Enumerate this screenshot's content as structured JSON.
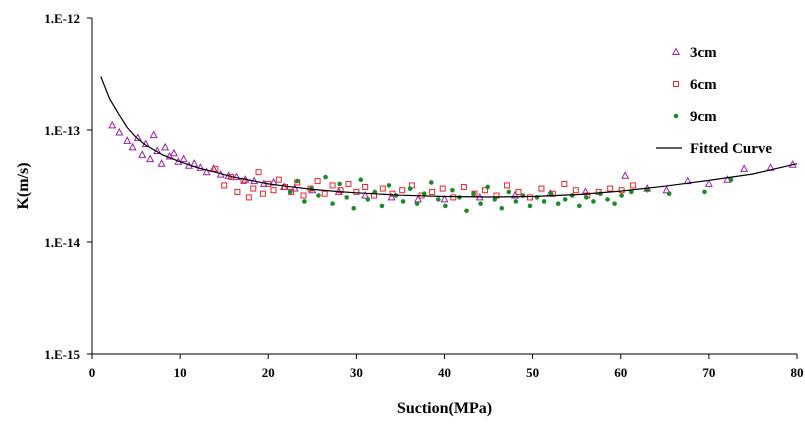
{
  "chart_data": {
    "type": "scatter",
    "title": "",
    "xlabel": "Suction(MPa)",
    "ylabel": "K(m/s)",
    "xlim": [
      0,
      80
    ],
    "ylim": [
      1e-15,
      1e-12
    ],
    "y_scale": "log",
    "grid": false,
    "legend_position": "top-right",
    "x_ticks": [
      "0",
      "10",
      "20",
      "30",
      "40",
      "50",
      "60",
      "70",
      "80"
    ],
    "y_ticks": [
      "1.E-15",
      "1.E-14",
      "1.E-13",
      "1.E-12"
    ],
    "series": [
      {
        "name": "3cm",
        "marker": "triangle-open",
        "color": "#9b1fa6",
        "x": [
          2.3,
          3.1,
          4.0,
          4.6,
          5.2,
          5.7,
          6.1,
          6.6,
          7.0,
          7.4,
          7.9,
          8.3,
          8.8,
          9.3,
          9.8,
          10.4,
          11.0,
          11.6,
          12.3,
          13.0,
          13.8,
          14.6,
          15.5,
          16.4,
          17.4,
          18.4,
          19.5,
          20.6,
          21.8,
          23.0,
          25.0,
          28.0,
          31.0,
          34.0,
          37.0,
          40.0,
          44.0,
          48.0,
          52.0,
          56.0,
          60.5,
          63.0,
          65.2,
          67.6,
          70.0,
          72.1,
          74.0,
          77.0,
          79.5
        ],
        "y": [
          1.1e-13,
          9.5e-14,
          8e-14,
          7e-14,
          8.5e-14,
          6e-14,
          7.5e-14,
          5.5e-14,
          9e-14,
          6.5e-14,
          5e-14,
          7e-14,
          5.8e-14,
          6.2e-14,
          5.2e-14,
          5.5e-14,
          4.8e-14,
          5e-14,
          4.6e-14,
          4.2e-14,
          4.5e-14,
          4e-14,
          3.9e-14,
          3.8e-14,
          3.6e-14,
          3.5e-14,
          3.3e-14,
          3.4e-14,
          3.1e-14,
          3e-14,
          2.9e-14,
          2.8e-14,
          2.6e-14,
          2.5e-14,
          2.4e-14,
          2.4e-14,
          2.5e-14,
          2.6e-14,
          2.7e-14,
          2.8e-14,
          3.9e-14,
          3e-14,
          2.9e-14,
          3.5e-14,
          3.3e-14,
          3.6e-14,
          4.5e-14,
          4.6e-14,
          4.9e-14
        ]
      },
      {
        "name": "6cm",
        "marker": "square-open",
        "color": "#e8242a",
        "x": [
          14.0,
          15.0,
          15.8,
          16.5,
          17.2,
          17.8,
          18.3,
          18.9,
          19.4,
          20.0,
          20.6,
          21.2,
          21.9,
          22.6,
          23.3,
          24.0,
          24.8,
          25.6,
          26.4,
          27.3,
          28.2,
          29.1,
          30.0,
          31.0,
          32.0,
          33.0,
          34.1,
          35.2,
          36.3,
          37.4,
          38.6,
          39.8,
          41.0,
          42.2,
          43.4,
          44.6,
          45.9,
          47.1,
          48.4,
          49.7,
          51.0,
          52.3,
          53.6,
          54.9,
          56.2,
          57.5,
          58.8,
          60.1,
          61.4
        ],
        "y": [
          4.5e-14,
          3.2e-14,
          3.8e-14,
          2.8e-14,
          3.5e-14,
          2.5e-14,
          3e-14,
          4.2e-14,
          2.7e-14,
          3.3e-14,
          2.9e-14,
          3.6e-14,
          3.1e-14,
          2.8e-14,
          3.4e-14,
          2.6e-14,
          3e-14,
          3.5e-14,
          2.7e-14,
          3.2e-14,
          2.9e-14,
          3.3e-14,
          2.8e-14,
          3.1e-14,
          2.6e-14,
          3e-14,
          2.7e-14,
          2.9e-14,
          3.2e-14,
          2.6e-14,
          2.8e-14,
          3e-14,
          2.5e-14,
          3.1e-14,
          2.7e-14,
          2.9e-14,
          2.6e-14,
          3.2e-14,
          2.8e-14,
          2.5e-14,
          3e-14,
          2.7e-14,
          3.3e-14,
          2.9e-14,
          2.6e-14,
          2.8e-14,
          3e-14,
          2.9e-14,
          3.2e-14
        ]
      },
      {
        "name": "9cm",
        "marker": "circle-filled",
        "color": "#1d8a2a",
        "x": [
          22.5,
          23.3,
          24.1,
          24.9,
          25.7,
          26.5,
          27.3,
          28.1,
          28.9,
          29.7,
          30.5,
          31.3,
          32.1,
          32.9,
          33.7,
          34.5,
          35.3,
          36.1,
          36.9,
          37.7,
          38.5,
          39.3,
          40.1,
          40.9,
          41.7,
          42.5,
          43.3,
          44.1,
          44.9,
          45.7,
          46.5,
          47.3,
          48.1,
          48.9,
          49.7,
          50.5,
          51.3,
          52.1,
          52.9,
          53.7,
          54.5,
          55.3,
          56.1,
          56.9,
          57.7,
          58.5,
          59.3,
          60.1,
          61.2,
          63.0,
          65.5,
          69.5,
          72.5
        ],
        "y": [
          2.8e-14,
          3.5e-14,
          2.3e-14,
          3e-14,
          2.6e-14,
          3.8e-14,
          2.2e-14,
          3.3e-14,
          2.5e-14,
          2e-14,
          3.6e-14,
          2.4e-14,
          2.8e-14,
          2.1e-14,
          3.2e-14,
          2.6e-14,
          2.3e-14,
          3e-14,
          2.2e-14,
          2.7e-14,
          3.4e-14,
          2.4e-14,
          2.1e-14,
          2.9e-14,
          2.5e-14,
          1.9e-14,
          2.7e-14,
          2.2e-14,
          3.1e-14,
          2.4e-14,
          2e-14,
          2.8e-14,
          2.3e-14,
          2.6e-14,
          2.1e-14,
          2.5e-14,
          2.3e-14,
          2.7e-14,
          2.2e-14,
          2.4e-14,
          2.6e-14,
          2.1e-14,
          2.5e-14,
          2.3e-14,
          2.7e-14,
          2.4e-14,
          2.2e-14,
          2.6e-14,
          2.8e-14,
          2.9e-14,
          2.7e-14,
          2.8e-14,
          3.6e-14
        ]
      },
      {
        "name": "Fitted Curve",
        "marker": "line",
        "color": "#000000",
        "x": [
          1,
          2,
          3,
          4,
          5,
          6,
          8,
          10,
          12,
          14,
          16,
          18,
          20,
          22,
          25,
          28,
          30,
          35,
          40,
          45,
          50,
          55,
          60,
          65,
          70,
          75,
          80
        ],
        "y": [
          3e-13,
          1.9e-13,
          1.4e-13,
          1.05e-13,
          8.6e-14,
          7.4e-14,
          6e-14,
          5.2e-14,
          4.6e-14,
          4.2e-14,
          3.8e-14,
          3.55e-14,
          3.3e-14,
          3.15e-14,
          2.95e-14,
          2.82e-14,
          2.75e-14,
          2.62e-14,
          2.55e-14,
          2.52e-14,
          2.55e-14,
          2.65e-14,
          2.85e-14,
          3.15e-14,
          3.55e-14,
          4.05e-14,
          5e-14
        ]
      }
    ]
  }
}
